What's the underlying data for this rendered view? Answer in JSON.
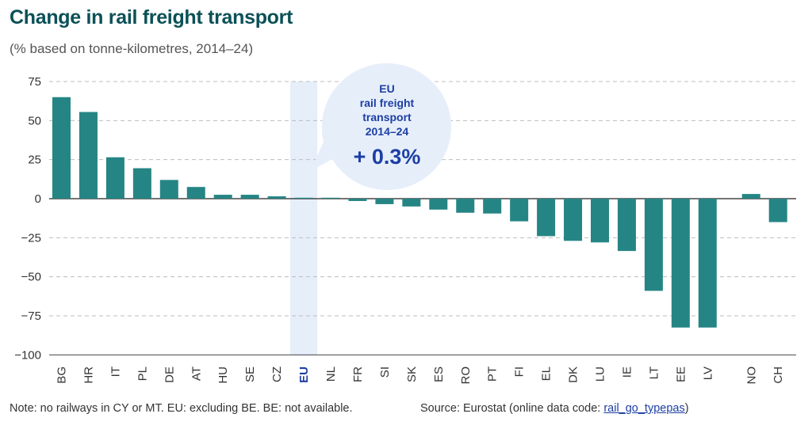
{
  "header": {
    "title": "Change in rail freight transport",
    "subtitle": "(% based on tonne-kilometres, 2014–24)"
  },
  "callout": {
    "line1": "EU",
    "line2": "rail freight",
    "line3": "transport",
    "line4": "2014–24",
    "value": "+ 0.3%"
  },
  "footer": {
    "note": "Note: no railways in CY or MT. EU: excluding BE. BE: not available.",
    "source_prefix": "Source: Eurostat (online data code: ",
    "source_code": "rail_go_typepas",
    "source_suffix": ")"
  },
  "colors": {
    "bar": "#258584",
    "highlight_band": "#e6eefa",
    "highlight_label": "#1d3fa4",
    "title": "#0b5157",
    "callout_bg": "#e6eefa",
    "callout_text": "#1d3fa4"
  },
  "chart_data": {
    "type": "bar",
    "categories": [
      "BG",
      "HR",
      "IT",
      "PL",
      "DE",
      "AT",
      "HU",
      "SE",
      "CZ",
      "EU",
      "NL",
      "FR",
      "SI",
      "SK",
      "ES",
      "RO",
      "PT",
      "FI",
      "EL",
      "DK",
      "LU",
      "IE",
      "LT",
      "EE",
      "LV",
      "NO",
      "CH"
    ],
    "values": [
      65,
      55.5,
      26.5,
      19.5,
      12,
      7.5,
      2.5,
      2.5,
      1.5,
      0.3,
      0.3,
      -1.5,
      -3.5,
      -5,
      -7,
      -9,
      -9.5,
      -14.5,
      -24,
      -27,
      -28,
      -33.5,
      -59,
      -82.5,
      -82.5,
      3,
      -15
    ],
    "highlight_category": "EU",
    "ylim": [
      -100,
      75
    ],
    "yticks": [
      75,
      50,
      25,
      0,
      -25,
      -50,
      -75,
      -100
    ],
    "ytick_labels": [
      "75",
      "50",
      "25",
      "0",
      "−25",
      "−50",
      "−75",
      "−100"
    ],
    "grid": "dashed horizontal",
    "title": "Change in rail freight transport",
    "xlabel": "",
    "ylabel": ""
  }
}
